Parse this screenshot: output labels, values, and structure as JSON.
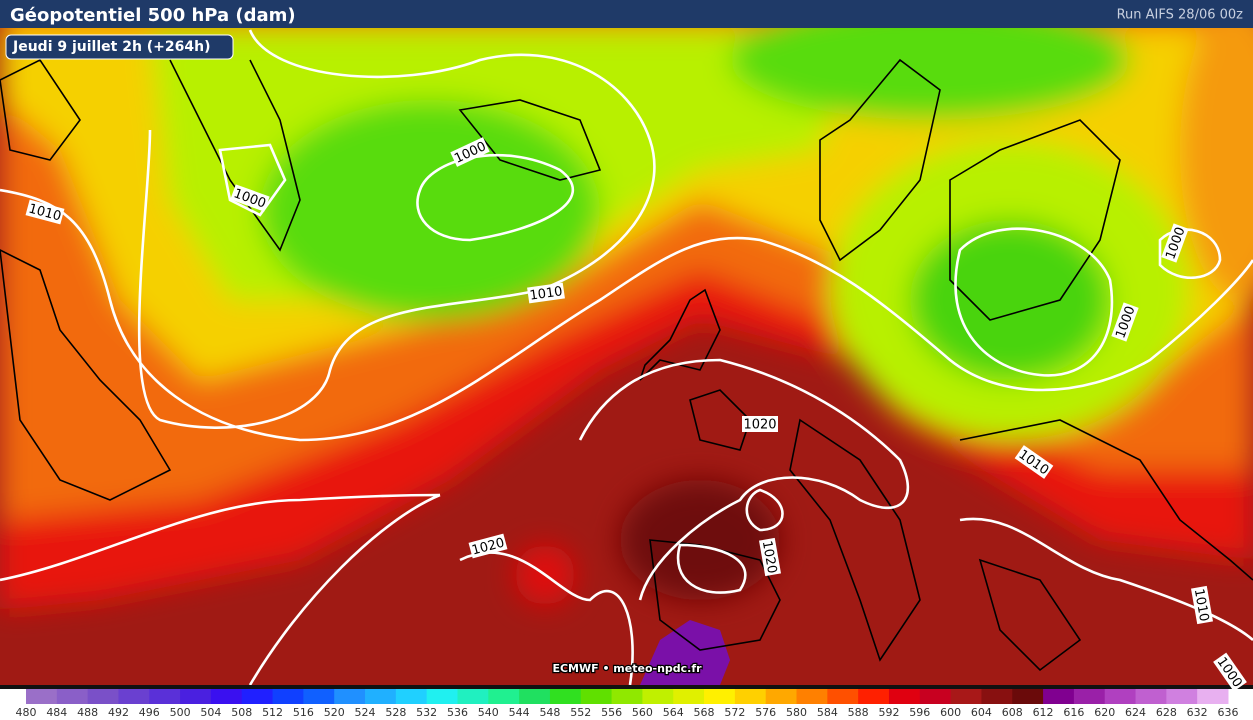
{
  "header": {
    "title": "Géopotentiel 500 hPa (dam)",
    "run": "Run AIFS 28/06 00z",
    "valid": "Jeudi 9 juillet 2h (+264h)"
  },
  "credit": "ECMWF • meteo-npdc.fr",
  "contour_labels": [
    1000,
    1000,
    1010,
    1010,
    1000,
    1000,
    1020,
    1020,
    1020,
    1010,
    1010,
    1000
  ],
  "colorbar": {
    "labels": [
      480,
      484,
      488,
      492,
      496,
      500,
      504,
      508,
      512,
      516,
      520,
      524,
      528,
      532,
      536,
      540,
      544,
      548,
      552,
      556,
      560,
      564,
      568,
      572,
      576,
      580,
      584,
      588,
      592,
      596,
      600,
      604,
      608,
      612,
      616,
      620,
      624,
      628,
      632,
      636
    ],
    "colors": [
      "#9a6fc8",
      "#8a5fc8",
      "#7a50c8",
      "#6a40d0",
      "#5a30d8",
      "#4a20e0",
      "#3a10f0",
      "#2020ff",
      "#1040ff",
      "#1060ff",
      "#2090ff",
      "#20b0ff",
      "#20d0ff",
      "#20f0f0",
      "#20f0c0",
      "#20f090",
      "#20e060",
      "#30e020",
      "#60e000",
      "#90e800",
      "#c0f000",
      "#e0f000",
      "#fff000",
      "#ffd000",
      "#ffa800",
      "#ff8000",
      "#ff5000",
      "#ff2000",
      "#e00010",
      "#c80020",
      "#a81818",
      "#881010",
      "#6a0a0a",
      "#800090",
      "#9a20a8",
      "#b040c0",
      "#c060d0",
      "#d080e0",
      "#e8b0f0"
    ]
  }
}
